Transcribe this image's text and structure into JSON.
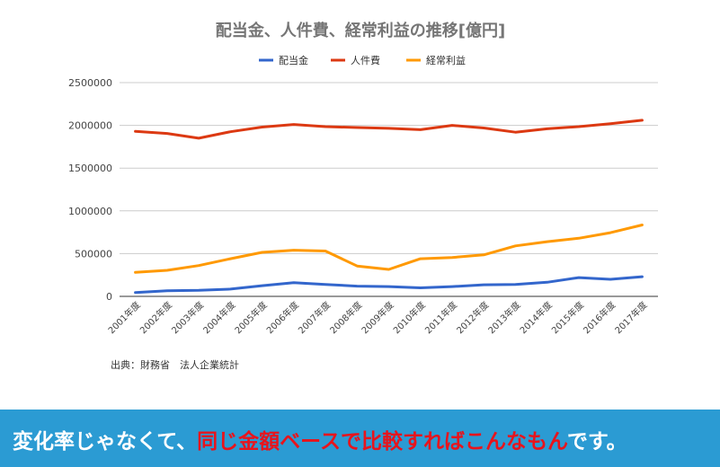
{
  "chart_data": {
    "type": "line",
    "title": "配当金、人件費、経常利益の推移[億円]",
    "categories": [
      "2001年度",
      "2002年度",
      "2003年度",
      "2004年度",
      "2005年度",
      "2006年度",
      "2007年度",
      "2008年度",
      "2009年度",
      "2010年度",
      "2011年度",
      "2012年度",
      "2013年度",
      "2014年度",
      "2015年度",
      "2016年度",
      "2017年度"
    ],
    "series": [
      {
        "name": "配当金",
        "color": "#3366cc",
        "values": [
          45000,
          65000,
          70000,
          85000,
          125000,
          160000,
          140000,
          120000,
          115000,
          100000,
          115000,
          135000,
          140000,
          165000,
          220000,
          200000,
          230000
        ]
      },
      {
        "name": "人件費",
        "color": "#dc3912",
        "values": [
          1930000,
          1905000,
          1850000,
          1925000,
          1980000,
          2010000,
          1985000,
          1975000,
          1965000,
          1950000,
          2000000,
          1970000,
          1920000,
          1960000,
          1985000,
          2020000,
          2060000
        ]
      },
      {
        "name": "経常利益",
        "color": "#ff9900",
        "values": [
          280000,
          305000,
          360000,
          440000,
          515000,
          540000,
          530000,
          355000,
          315000,
          440000,
          455000,
          485000,
          590000,
          640000,
          680000,
          745000,
          835000
        ]
      }
    ],
    "yticks": [
      0,
      500000,
      1000000,
      1500000,
      2000000,
      2500000
    ],
    "ylim": [
      0,
      2500000
    ],
    "grid": true,
    "legend_position": "top-center"
  },
  "source": "出典：財務省　法人企業統計",
  "banner": {
    "part1": "変化率じゃなくて、",
    "part2": "同じ金額ベースで比較すればこんなもん",
    "part3": "です。",
    "background": "#2b9bd3",
    "highlight_color": "#e8141c"
  }
}
